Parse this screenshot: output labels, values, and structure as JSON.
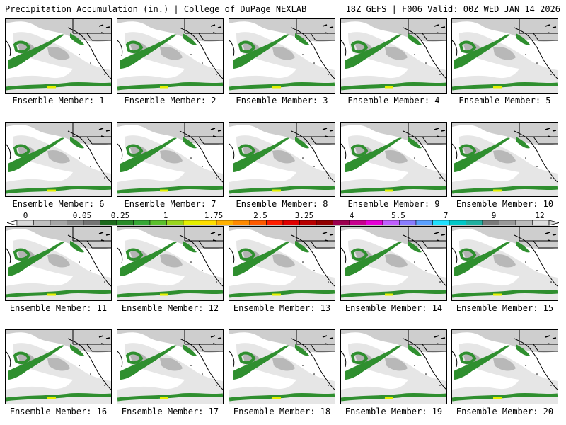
{
  "header": {
    "title": "Precipitation Accumulation (in.) | College of DuPage NEXLAB",
    "run_info": "18Z GEFS | F006 Valid: 00Z WED JAN 14 2026"
  },
  "members": [
    {
      "label": "Ensemble Member: 1"
    },
    {
      "label": "Ensemble Member: 2"
    },
    {
      "label": "Ensemble Member: 3"
    },
    {
      "label": "Ensemble Member: 4"
    },
    {
      "label": "Ensemble Member: 5"
    },
    {
      "label": "Ensemble Member: 6"
    },
    {
      "label": "Ensemble Member: 7"
    },
    {
      "label": "Ensemble Member: 8"
    },
    {
      "label": "Ensemble Member: 9"
    },
    {
      "label": "Ensemble Member: 10"
    },
    {
      "label": "Ensemble Member: 11"
    },
    {
      "label": "Ensemble Member: 12"
    },
    {
      "label": "Ensemble Member: 13"
    },
    {
      "label": "Ensemble Member: 14"
    },
    {
      "label": "Ensemble Member: 15"
    },
    {
      "label": "Ensemble Member: 16"
    },
    {
      "label": "Ensemble Member: 17"
    },
    {
      "label": "Ensemble Member: 18"
    },
    {
      "label": "Ensemble Member: 19"
    },
    {
      "label": "Ensemble Member: 20"
    }
  ],
  "colorbar": {
    "labels": [
      "0",
      "0.05",
      "0.25",
      "1",
      "1.75",
      "2.5",
      "3.25",
      "4",
      "5.5",
      "7",
      "9",
      "12"
    ],
    "colors": [
      "#d9d9d9",
      "#bfbfbf",
      "#a6a6a6",
      "#8c8c8c",
      "#737373",
      "#1d6a1d",
      "#2a8c2a",
      "#37a837",
      "#5cc12d",
      "#9ad61f",
      "#e4f000",
      "#ffde00",
      "#ffb000",
      "#ff8a00",
      "#ff5a00",
      "#ff1e00",
      "#e00000",
      "#b80000",
      "#900000",
      "#9c004f",
      "#c8008f",
      "#e600d6",
      "#c060ff",
      "#8a7dff",
      "#5aa0ff",
      "#20e0ff",
      "#00c8c8",
      "#22b0a0",
      "#7a7a7a",
      "#999999",
      "#bbbbbb",
      "#dddddd"
    ]
  }
}
